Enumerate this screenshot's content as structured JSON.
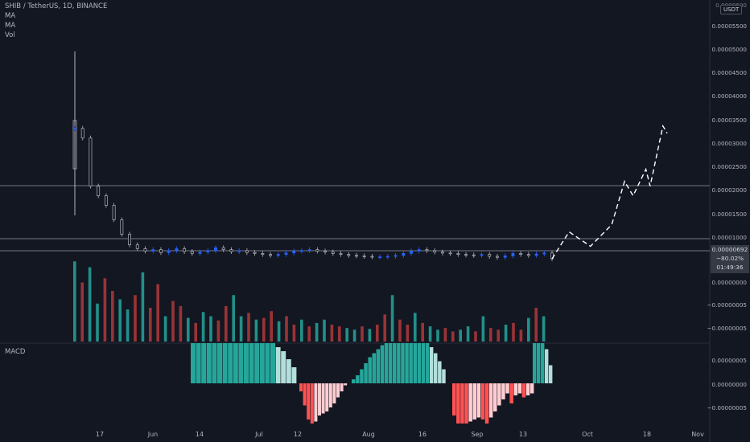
{
  "header": {
    "symbol": "SHIB / TetherUS, 1D, BINANCE",
    "ind1": "MA",
    "ind2": "MA",
    "ind3": "Vol",
    "macd": "MACD"
  },
  "quote_badge": "USDT",
  "price_label": {
    "price": "0.00000692",
    "change": "−80.02%",
    "countdown": "01:49:36",
    "color": "#363a45"
  },
  "colors": {
    "background": "#131722",
    "candle_up": "#2962ff",
    "candle_down": "#b2b5be",
    "vol_up": "#26a69a",
    "vol_down": "#b23a3a",
    "macd_pos_strong": "#26a69a",
    "macd_pos_weak": "#b2dfdb",
    "macd_neg_strong": "#ff5252",
    "macd_neg_weak": "#ffcdd2",
    "projection": "#ffffff",
    "hline": "#9598a1"
  },
  "chart_data": [
    {
      "type": "candlestick",
      "title": "SHIB / TetherUS, 1D, BINANCE",
      "x_tick_labels": [
        "17",
        "Jun",
        "14",
        "Jul",
        "12",
        "Aug",
        "16",
        "Sep",
        "13",
        "Oct",
        "18",
        "Nov"
      ],
      "y_tick_labels": [
        "0.00000692",
        "0.00001000",
        "0.00001500",
        "0.00002000",
        "0.00002500",
        "0.00003000",
        "0.00003500",
        "0.00004000",
        "0.00004500",
        "0.00005000",
        "0.00005500"
      ],
      "y_axis_top_partial": "0.0000600",
      "ylim": [
        5e-07,
        6e-05
      ],
      "horizontal_lines": [
        2.1e-05,
        9.9e-06,
        6.9e-06
      ],
      "close_approx": [
        3.4e-05,
        3.2e-05,
        2.2e-05,
        2e-05,
        1.8e-05,
        1.5e-05,
        1.2e-05,
        9.8e-06,
        9e-06,
        8.5e-06,
        8.8e-06,
        8.2e-06,
        8.6e-06,
        9e-06,
        8.4e-06,
        8e-06,
        8.3e-06,
        8.6e-06,
        9.2e-06,
        8.8e-06,
        8.4e-06,
        8.6e-06,
        8.2e-06,
        8e-06,
        7.8e-06,
        7.6e-06,
        7.8e-06,
        8.1e-06,
        8.5e-06,
        8.6e-06,
        8.8e-06,
        8.5e-06,
        8.3e-06,
        8e-06,
        7.8e-06,
        7.6e-06,
        7.5e-06,
        7.4e-06,
        7.3e-06,
        7.3e-06,
        7.4e-06,
        7.6e-06,
        8e-06,
        8.5e-06,
        8.8e-06,
        8.6e-06,
        8.3e-06,
        8.1e-06,
        8e-06,
        7.8e-06,
        7.7e-06,
        7.6e-06,
        7.8e-06,
        7.4e-06,
        7.2e-06,
        7.5e-06,
        8e-06,
        7.8e-06,
        7.6e-06,
        7.9e-06,
        8.1e-06,
        6.9e-06
      ],
      "projection_path": [
        [
          6.9e-06,
          0
        ],
        [
          1.25e-05,
          4
        ],
        [
          9.5e-06,
          9
        ],
        [
          1.4e-05,
          14
        ],
        [
          2.3e-05,
          17
        ],
        [
          2e-05,
          19
        ],
        [
          2.55e-05,
          22
        ],
        [
          2.2e-05,
          23
        ],
        [
          3.45e-05,
          26
        ],
        [
          3.3e-05,
          27
        ]
      ]
    },
    {
      "type": "bar",
      "title": "Vol",
      "values": [
        95,
        70,
        88,
        45,
        75,
        60,
        50,
        38,
        55,
        82,
        40,
        68,
        30,
        48,
        42,
        28,
        22,
        35,
        30,
        25,
        42,
        55,
        30,
        34,
        26,
        28,
        36,
        24,
        30,
        20,
        26,
        18,
        22,
        26,
        20,
        18,
        16,
        14,
        18,
        15,
        20,
        32,
        55,
        26,
        20,
        34,
        22,
        18,
        14,
        16,
        12,
        14,
        18,
        12,
        30,
        16,
        14,
        20,
        22,
        14,
        28,
        40,
        30
      ]
    },
    {
      "type": "bar",
      "title": "MACD",
      "y_tick_labels": [
        "0.00000005",
        "0.00000000",
        "−0.00000005"
      ],
      "hist_left": [
        -0.2,
        -0.55,
        -0.9,
        -1.0,
        -0.95,
        -0.8,
        -0.75,
        -0.7,
        -0.6,
        -0.5,
        -0.35,
        -0.2,
        -0.05
      ],
      "hist_pos": [
        1.0,
        1.0,
        1.0,
        1.0,
        1.0,
        1.0,
        1.0,
        1.0,
        1.0,
        1.0,
        1.0,
        1.0,
        1.0,
        1.0,
        1.0,
        1.0,
        0.9,
        0.8,
        0.6,
        0.4
      ],
      "hist_mid": [
        0.1,
        0.2,
        0.35,
        0.5,
        0.65,
        0.75,
        0.85,
        0.95,
        1.0,
        1.0,
        1.0,
        1.0,
        1.0,
        1.0,
        1.0,
        1.0,
        1.0,
        1.0,
        1.0,
        0.9,
        0.75,
        0.55,
        0.35
      ],
      "hist_right": [
        -0.8,
        -1.0,
        -1.0,
        -1.0,
        -0.95,
        -0.9,
        -0.85,
        -0.9,
        -1.0,
        -0.85,
        -0.7,
        -0.55,
        -0.4,
        -0.25,
        -0.5,
        -0.3,
        -0.25,
        -0.35,
        -0.3,
        -0.25
      ],
      "hist_last": [
        1.0,
        1.0,
        1.0,
        0.85,
        0.45
      ]
    }
  ]
}
